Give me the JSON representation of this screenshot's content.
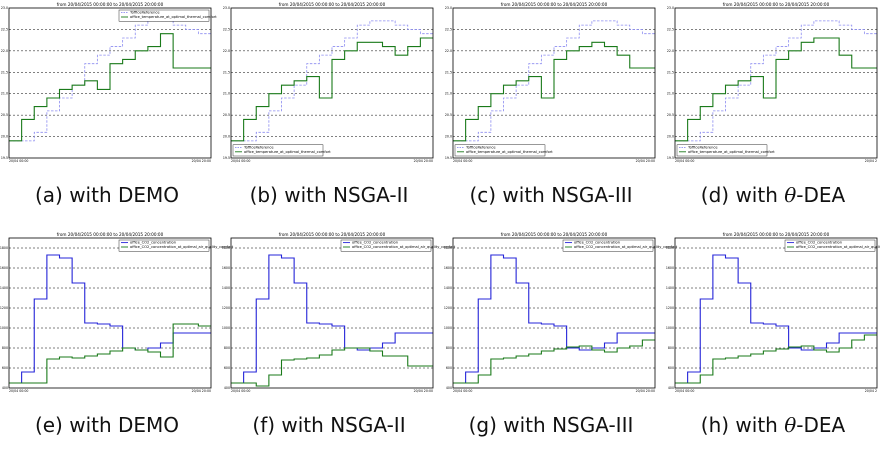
{
  "colors": {
    "blue": "#2424d8",
    "green": "#1a7a1a",
    "dashed_blue": "#8c8cf0"
  },
  "chart_data": [
    {
      "id": "a",
      "type": "line",
      "caption_prefix": "(a) with ",
      "caption_method": "DEMO",
      "caption_theta": false,
      "title": "from 20/04/2015 00:00:00 to 20/04/2015 20:00:00",
      "yticks": [
        "19.5",
        "20.0",
        "20.5",
        "21.0",
        "21.5",
        "22.0",
        "22.5",
        "23.0"
      ],
      "ylim": [
        19.5,
        23.0
      ],
      "xticks": [
        "20/04 00:00",
        "20/04 20:00"
      ],
      "legend_position": "top-right",
      "series": [
        {
          "name": "TofficeReference",
          "style": "dashed",
          "color": "dashed_blue",
          "values": [
            19.9,
            19.9,
            20.1,
            20.6,
            20.9,
            21.2,
            21.7,
            21.9,
            22.1,
            22.3,
            22.6,
            22.7,
            22.7,
            22.6,
            22.5,
            22.4
          ]
        },
        {
          "name": "office_temperature_at_optimal_thermal_comfort",
          "style": "solid",
          "color": "green",
          "values": [
            19.9,
            20.4,
            20.7,
            20.9,
            21.1,
            21.2,
            21.3,
            21.1,
            21.7,
            21.8,
            22.0,
            22.1,
            22.4,
            21.6,
            21.6,
            21.6
          ]
        }
      ]
    },
    {
      "id": "b",
      "type": "line",
      "caption_prefix": "(b) with ",
      "caption_method": "NSGA-II",
      "caption_theta": false,
      "title": "from 20/04/2015 00:00:00 to 20/04/2015 20:00:00",
      "yticks": [
        "19.5",
        "20.0",
        "20.5",
        "21.0",
        "21.5",
        "22.0",
        "22.5",
        "23.0"
      ],
      "ylim": [
        19.5,
        23.0
      ],
      "xticks": [
        "20/04 00:00",
        "20/04 20:00"
      ],
      "legend_position": "bottom-left",
      "series": [
        {
          "name": "TofficeReference",
          "style": "dashed",
          "color": "dashed_blue",
          "values": [
            19.9,
            19.9,
            20.1,
            20.6,
            20.9,
            21.2,
            21.7,
            21.9,
            22.1,
            22.3,
            22.6,
            22.7,
            22.7,
            22.6,
            22.5,
            22.4
          ]
        },
        {
          "name": "office_temperature_at_optimal_thermal_comfort",
          "style": "solid",
          "color": "green",
          "values": [
            19.9,
            20.4,
            20.7,
            21.0,
            21.2,
            21.3,
            21.4,
            20.9,
            21.8,
            22.0,
            22.2,
            22.2,
            22.1,
            21.9,
            22.1,
            22.3
          ]
        }
      ]
    },
    {
      "id": "c",
      "type": "line",
      "caption_prefix": "(c) with ",
      "caption_method": "NSGA-III",
      "caption_theta": false,
      "title": "from 20/04/2015 00:00:00 to 20/04/2015 20:00:00",
      "yticks": [
        "19.5",
        "20.0",
        "20.5",
        "21.0",
        "21.5",
        "22.0",
        "22.5",
        "23.0"
      ],
      "ylim": [
        19.5,
        23.0
      ],
      "xticks": [
        "20/04 00:00",
        "20/04 20:00"
      ],
      "legend_position": "bottom-left",
      "series": [
        {
          "name": "TofficeReference",
          "style": "dashed",
          "color": "dashed_blue",
          "values": [
            19.9,
            19.9,
            20.1,
            20.6,
            20.9,
            21.2,
            21.7,
            21.9,
            22.1,
            22.3,
            22.6,
            22.7,
            22.7,
            22.6,
            22.5,
            22.4
          ]
        },
        {
          "name": "office_temperature_at_optimal_thermal_comfort",
          "style": "solid",
          "color": "green",
          "values": [
            19.9,
            20.4,
            20.7,
            21.0,
            21.2,
            21.3,
            21.4,
            20.9,
            21.8,
            22.0,
            22.1,
            22.2,
            22.1,
            21.9,
            21.6,
            21.6
          ]
        }
      ]
    },
    {
      "id": "d",
      "type": "line",
      "caption_prefix": "(d) with ",
      "caption_method": "-DEA",
      "caption_theta": true,
      "title": "from 20/04/2015 00:00:00 to 20/04/2015 20:00:00",
      "yticks": [
        "19.5",
        "20.0",
        "20.5",
        "21.0",
        "21.5",
        "22.0",
        "22.5",
        "23.0"
      ],
      "ylim": [
        19.5,
        23.0
      ],
      "xticks": [
        "20/04 00:00",
        "20/04 2"
      ],
      "legend_position": "bottom-left",
      "series": [
        {
          "name": "TofficeReference",
          "style": "dashed",
          "color": "dashed_blue",
          "values": [
            19.9,
            19.9,
            20.1,
            20.6,
            20.9,
            21.2,
            21.7,
            21.9,
            22.1,
            22.3,
            22.6,
            22.7,
            22.7,
            22.6,
            22.5,
            22.4
          ]
        },
        {
          "name": "office_temperature_at_optimal_thermal_comfort",
          "style": "solid",
          "color": "green",
          "values": [
            19.9,
            20.4,
            20.7,
            21.0,
            21.2,
            21.3,
            21.4,
            20.9,
            21.8,
            22.0,
            22.2,
            22.3,
            22.3,
            21.9,
            21.6,
            21.6
          ]
        }
      ]
    },
    {
      "id": "e",
      "type": "line",
      "caption_prefix": "(e) with ",
      "caption_method": "DEMO",
      "caption_theta": false,
      "title": "from 20/04/2015 00:00:00 to 20/04/2015 20:00:00",
      "yticks": [
        "400",
        "600",
        "800",
        "1000",
        "1200",
        "1400",
        "1600",
        "1800"
      ],
      "ylim": [
        400,
        1900
      ],
      "xticks": [
        "20/04 00:00",
        "20/04 20:00"
      ],
      "legend_position": "top-right",
      "series": [
        {
          "name": "office_CO2_concentration",
          "style": "solid",
          "color": "blue",
          "values": [
            450,
            560,
            1290,
            1730,
            1700,
            1450,
            1050,
            1040,
            1020,
            800,
            780,
            800,
            850,
            950,
            950,
            950
          ]
        },
        {
          "name": "office_CO2_concentration_at_optimal_air_quality_comfort",
          "style": "solid",
          "color": "green",
          "values": [
            450,
            450,
            450,
            690,
            710,
            700,
            720,
            740,
            770,
            800,
            780,
            760,
            710,
            1040,
            1040,
            1020
          ]
        }
      ]
    },
    {
      "id": "f",
      "type": "line",
      "caption_prefix": "(f) with ",
      "caption_method": "NSGA-II",
      "caption_theta": false,
      "title": "from 20/04/2015 00:00:00 to 20/04/2015 20:00:00",
      "yticks": [
        "400",
        "600",
        "800",
        "1000",
        "1200",
        "1400",
        "1600",
        "1800"
      ],
      "ylim": [
        400,
        1900
      ],
      "xticks": [
        "20/04 00:00",
        "20/04 20:00"
      ],
      "legend_position": "top-right",
      "series": [
        {
          "name": "office_CO2_concentration",
          "style": "solid",
          "color": "blue",
          "values": [
            450,
            560,
            1290,
            1730,
            1700,
            1450,
            1050,
            1040,
            1020,
            800,
            780,
            800,
            850,
            950,
            950,
            950
          ]
        },
        {
          "name": "office_CO2_concentration_at_optimal_air_quality_comfort",
          "style": "solid",
          "color": "green",
          "values": [
            450,
            450,
            420,
            530,
            680,
            690,
            700,
            730,
            780,
            800,
            800,
            770,
            720,
            720,
            620,
            620
          ]
        }
      ]
    },
    {
      "id": "g",
      "type": "line",
      "caption_prefix": "(g) with ",
      "caption_method": "NSGA-III",
      "caption_theta": false,
      "title": "from 20/04/2015 00:00:00 to 20/04/2015 20:00:00",
      "yticks": [
        "400",
        "600",
        "800",
        "1000",
        "1200",
        "1400",
        "1600",
        "1800"
      ],
      "ylim": [
        400,
        1900
      ],
      "xticks": [
        "20/04 00:00",
        "20/04 20:00"
      ],
      "legend_position": "top-right",
      "series": [
        {
          "name": "office_CO2_concentration",
          "style": "solid",
          "color": "blue",
          "values": [
            450,
            560,
            1290,
            1730,
            1700,
            1450,
            1050,
            1040,
            1020,
            800,
            780,
            800,
            850,
            950,
            950,
            950
          ]
        },
        {
          "name": "office_CO2_concentration_at_optimal_air_quality_comfort",
          "style": "solid",
          "color": "green",
          "values": [
            450,
            450,
            530,
            690,
            700,
            720,
            740,
            770,
            790,
            810,
            820,
            780,
            760,
            800,
            820,
            880
          ]
        }
      ]
    },
    {
      "id": "h",
      "type": "line",
      "caption_prefix": "(h) with ",
      "caption_method": "-DEA",
      "caption_theta": true,
      "title": "from 20/04/2015 00:00:00 to 20/04/2015 20:00:00",
      "yticks": [
        "400",
        "600",
        "800",
        "1000",
        "1200",
        "1400",
        "1600",
        "1800"
      ],
      "ylim": [
        400,
        1900
      ],
      "xticks": [
        "20/04 00:00",
        "20/04 2"
      ],
      "legend_position": "top-right",
      "series": [
        {
          "name": "office_CO2_concentration",
          "style": "solid",
          "color": "blue",
          "values": [
            450,
            560,
            1290,
            1730,
            1700,
            1450,
            1050,
            1040,
            1020,
            800,
            780,
            800,
            850,
            950,
            950,
            950
          ]
        },
        {
          "name": "office_CO2_concentration_at_optimal_air_quality_comfort",
          "style": "solid",
          "color": "green",
          "values": [
            450,
            450,
            530,
            690,
            700,
            720,
            740,
            770,
            790,
            810,
            820,
            780,
            760,
            800,
            880,
            930
          ]
        }
      ]
    }
  ]
}
